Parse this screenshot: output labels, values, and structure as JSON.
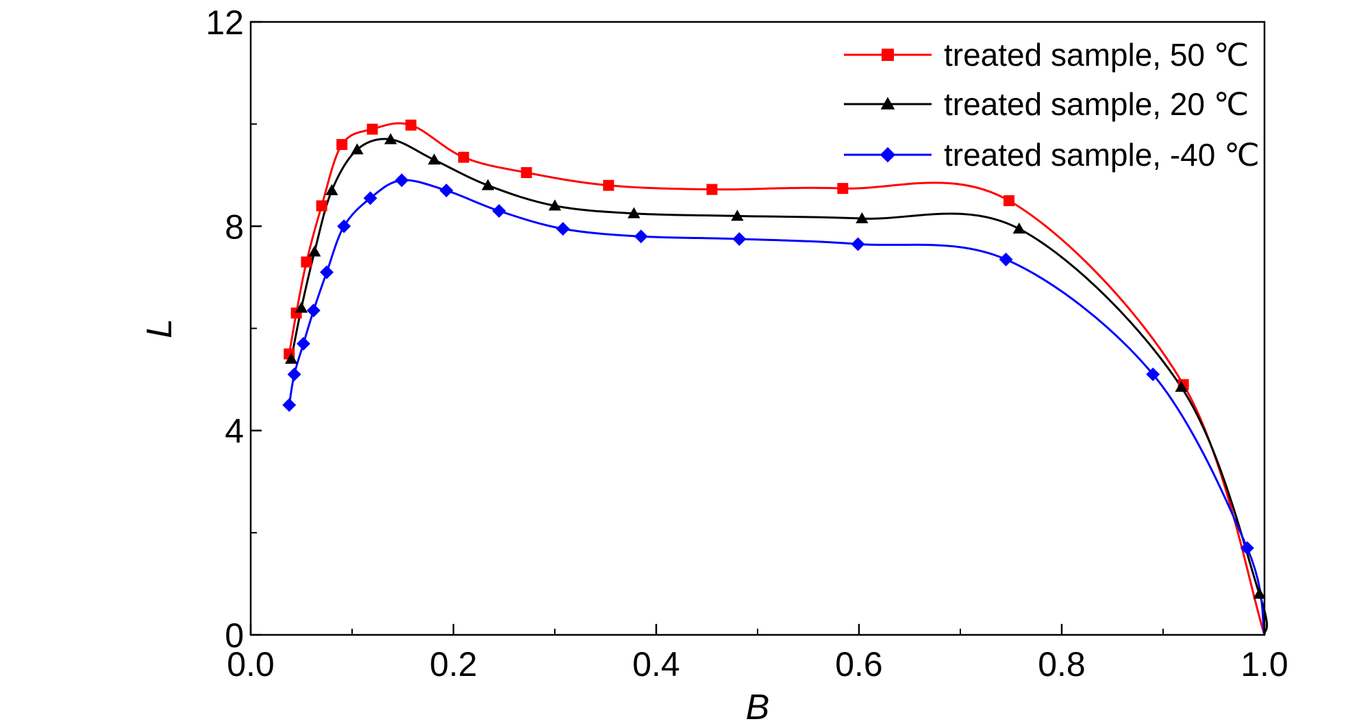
{
  "chart_data": {
    "type": "line",
    "xlabel": "B",
    "ylabel": "L",
    "xlim": [
      0.0,
      1.0
    ],
    "ylim": [
      0,
      12
    ],
    "x_ticks": [
      "0.0",
      "0.2",
      "0.4",
      "0.6",
      "0.8",
      "1.0"
    ],
    "y_ticks": [
      "0",
      "4",
      "8",
      "12"
    ],
    "grid": false,
    "legend_position": "top-right",
    "series": [
      {
        "name": "treated sample, 50 ℃",
        "color": "#ff0000",
        "marker": "square",
        "x": [
          0.038,
          0.045,
          0.055,
          0.07,
          0.09,
          0.12,
          0.158,
          0.21,
          0.272,
          0.353,
          0.455,
          0.584,
          0.748,
          0.92
        ],
        "y": [
          5.5,
          6.3,
          7.3,
          8.4,
          9.6,
          9.9,
          9.98,
          9.35,
          9.05,
          8.8,
          8.72,
          8.74,
          8.5,
          4.9
        ]
      },
      {
        "name": "treated sample, 20 ℃",
        "color": "#000000",
        "marker": "triangle",
        "x": [
          0.04,
          0.05,
          0.063,
          0.08,
          0.105,
          0.138,
          0.181,
          0.234,
          0.3,
          0.378,
          0.48,
          0.603,
          0.758,
          0.918,
          0.995
        ],
        "y": [
          5.4,
          6.4,
          7.5,
          8.7,
          9.5,
          9.7,
          9.3,
          8.8,
          8.4,
          8.25,
          8.2,
          8.15,
          7.95,
          4.85,
          0.8
        ]
      },
      {
        "name": "treated sample, -40 ℃",
        "color": "#0000ff",
        "marker": "diamond",
        "x": [
          0.038,
          0.043,
          0.052,
          0.062,
          0.075,
          0.092,
          0.118,
          0.149,
          0.193,
          0.245,
          0.308,
          0.385,
          0.482,
          0.599,
          0.745,
          0.89,
          0.983
        ],
        "y": [
          4.5,
          5.1,
          5.7,
          6.35,
          7.1,
          8.0,
          8.55,
          8.9,
          8.7,
          8.3,
          7.95,
          7.8,
          7.75,
          7.65,
          7.35,
          5.1,
          1.7
        ]
      }
    ]
  }
}
